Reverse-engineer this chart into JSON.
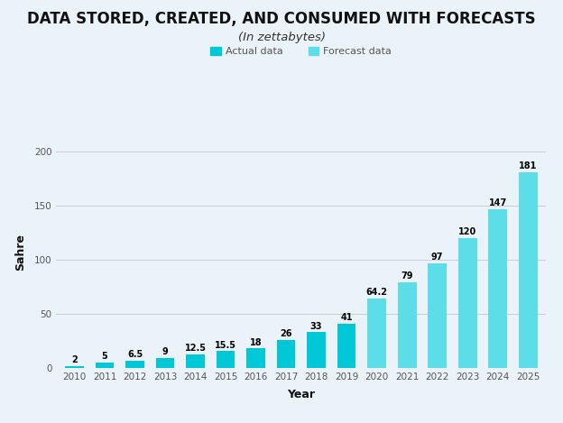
{
  "title": "DATA STORED, CREATED, AND CONSUMED WITH FORECASTS",
  "subtitle": "(In zettabytes)",
  "xlabel": "Year",
  "ylabel": "Sahre",
  "years": [
    2010,
    2011,
    2012,
    2013,
    2014,
    2015,
    2016,
    2017,
    2018,
    2019,
    2020,
    2021,
    2022,
    2023,
    2024,
    2025
  ],
  "values": [
    2,
    5,
    6.5,
    9,
    12.5,
    15.5,
    18,
    26,
    33,
    41,
    64.2,
    79,
    97,
    120,
    147,
    181
  ],
  "actual_cutoff": 10,
  "actual_color": "#00C8D7",
  "forecast_color": "#5DDDE8",
  "background_color": "#EBF3FA",
  "bar_width": 0.62,
  "ylim": [
    0,
    215
  ],
  "yticks": [
    0,
    50,
    100,
    150,
    200
  ],
  "legend_actual_label": "Actual data",
  "legend_forecast_label": "Forecast data",
  "label_fontsize": 7.0,
  "title_fontsize": 12,
  "subtitle_fontsize": 9.5,
  "axis_label_fontsize": 9,
  "tick_fontsize": 7.5
}
